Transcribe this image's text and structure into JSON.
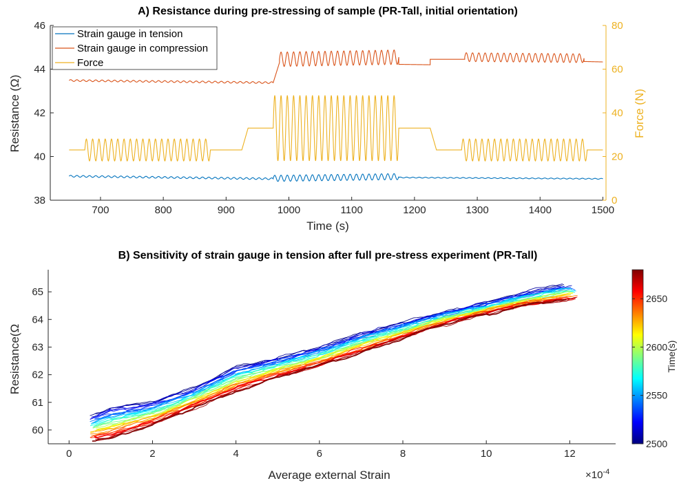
{
  "chart_data": [
    {
      "type": "line",
      "title": "A) Resistance during pre-stressing of sample (PR-Tall, initial orientation)",
      "xlabel": "Time (s)",
      "ylabel": "Resistance (Ω)",
      "ylabel_right": "Force (N)",
      "xlim": [
        620,
        1505
      ],
      "ylim": [
        38,
        46
      ],
      "ylim_right": [
        0,
        80
      ],
      "x_ticks": [
        700,
        800,
        900,
        1000,
        1100,
        1200,
        1300,
        1400,
        1500
      ],
      "y_ticks": [
        38,
        40,
        42,
        44,
        46
      ],
      "y_ticks_right": [
        0,
        20,
        40,
        60,
        80
      ],
      "legend_position": "top-left",
      "legend": [
        "Strain gauge in tension",
        "Strain gauge in compression",
        "Force"
      ],
      "series": [
        {
          "name": "Strain gauge in tension",
          "axis": "left",
          "color": "#0072BD",
          "segments": [
            {
              "x0": 650,
              "x1": 975,
              "base_start": 39.1,
              "base_end": 38.98,
              "amp": 0.04,
              "period": 10
            },
            {
              "x0": 975,
              "x1": 1175,
              "base_start": 39.0,
              "base_end": 39.08,
              "amp": 0.14,
              "period": 10
            },
            {
              "x0": 1175,
              "x1": 1500,
              "base_start": 39.04,
              "base_end": 38.98,
              "amp": 0.02,
              "period": 10
            }
          ]
        },
        {
          "name": "Strain gauge in compression",
          "axis": "left",
          "color": "#D95319",
          "segments": [
            {
              "x0": 650,
              "x1": 975,
              "base_start": 43.48,
              "base_end": 43.38,
              "amp": 0.04,
              "period": 10
            },
            {
              "x0": 975,
              "x1": 985,
              "base_start": 43.38,
              "base_end": 44.3,
              "amp": 0.0,
              "period": 10
            },
            {
              "x0": 985,
              "x1": 1175,
              "base_start": 44.45,
              "base_end": 44.55,
              "amp": 0.33,
              "period": 10
            },
            {
              "x0": 1175,
              "x1": 1225,
              "base_start": 44.22,
              "base_end": 44.2,
              "amp": 0.0,
              "period": 10
            },
            {
              "x0": 1225,
              "x1": 1280,
              "base_start": 44.45,
              "base_end": 44.45,
              "amp": 0.0,
              "period": 10
            },
            {
              "x0": 1280,
              "x1": 1470,
              "base_start": 44.55,
              "base_end": 44.5,
              "amp": 0.2,
              "period": 10
            },
            {
              "x0": 1470,
              "x1": 1500,
              "base_start": 44.35,
              "base_end": 44.33,
              "amp": 0.0,
              "period": 10
            }
          ]
        },
        {
          "name": "Force",
          "axis": "right",
          "color": "#EDB120",
          "breakpoints": [
            [
              650,
              23
            ],
            [
              675,
              23
            ],
            [
              875,
              23
            ],
            [
              925,
              23
            ],
            [
              935,
              33
            ],
            [
              975,
              33
            ],
            [
              1175,
              33
            ],
            [
              1225,
              33
            ],
            [
              1235,
              23
            ],
            [
              1275,
              23
            ],
            [
              1475,
              23
            ],
            [
              1500,
              23
            ]
          ],
          "oscillations": [
            {
              "x0": 675,
              "x1": 875,
              "center": 23,
              "amp": 5,
              "period": 10
            },
            {
              "x0": 975,
              "x1": 1175,
              "center": 33,
              "amp": 15,
              "period": 10
            },
            {
              "x0": 1275,
              "x1": 1475,
              "center": 23,
              "amp": 5,
              "period": 10
            }
          ]
        }
      ]
    },
    {
      "type": "line",
      "title": "B) Sensitivity of strain gauge in tension after full pre-stress experiment (PR-Tall)",
      "xlabel": "Average external Strain",
      "ylabel": "Resistance(Ω",
      "x_multiplier": "×10",
      "x_multiplier_exponent": "-4",
      "xlim": [
        -0.5,
        13.1
      ],
      "ylim": [
        59.5,
        65.8
      ],
      "x_ticks": [
        0,
        2,
        4,
        6,
        8,
        10,
        12
      ],
      "y_ticks": [
        60,
        61,
        62,
        63,
        64,
        65
      ],
      "colorbar": {
        "label": "Time(s)",
        "range": [
          2500,
          2680
        ],
        "ticks": [
          2500,
          2550,
          2600,
          2650
        ],
        "colormap": "jet"
      },
      "curves": {
        "count": 36,
        "x_range": [
          0.5,
          12.2
        ],
        "upper_bound": [
          [
            0.5,
            60.5
          ],
          [
            1,
            60.8
          ],
          [
            2,
            61.0
          ],
          [
            3,
            61.5
          ],
          [
            4,
            62.3
          ],
          [
            5,
            62.6
          ],
          [
            6,
            63.0
          ],
          [
            7,
            63.5
          ],
          [
            8,
            63.9
          ],
          [
            9,
            64.3
          ],
          [
            10,
            64.6
          ],
          [
            11,
            65.0
          ],
          [
            12,
            65.3
          ],
          [
            12.2,
            65.1
          ]
        ],
        "lower_bound": [
          [
            0.5,
            59.6
          ],
          [
            1,
            59.7
          ],
          [
            2,
            60.2
          ],
          [
            3,
            60.8
          ],
          [
            4,
            61.4
          ],
          [
            5,
            61.9
          ],
          [
            6,
            62.3
          ],
          [
            7,
            62.8
          ],
          [
            8,
            63.3
          ],
          [
            9,
            63.8
          ],
          [
            10,
            64.2
          ],
          [
            11,
            64.5
          ],
          [
            12,
            64.7
          ],
          [
            12.2,
            64.8
          ]
        ]
      }
    }
  ]
}
